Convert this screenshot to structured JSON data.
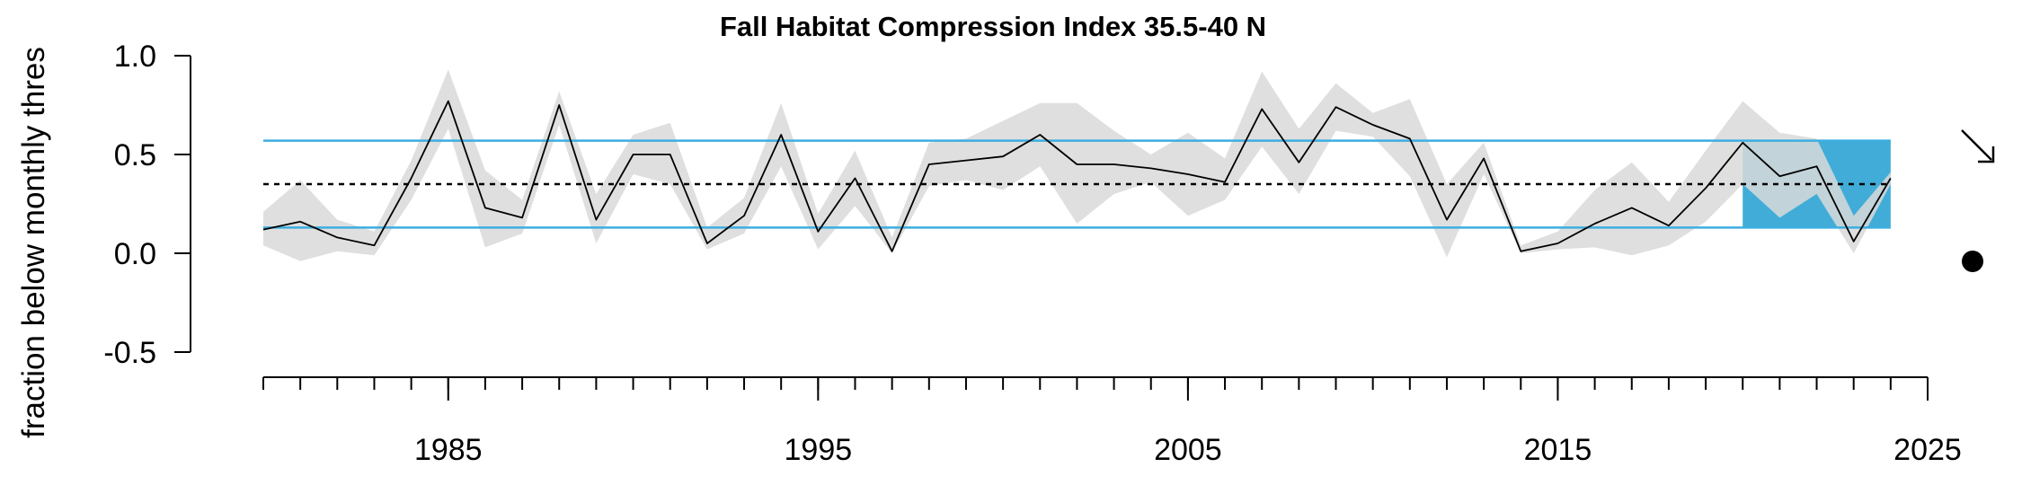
{
  "chart_data": {
    "type": "line",
    "title": "Fall Habitat Compression Index 35.5-40 N",
    "ylabel": "fraction below monthly thres",
    "xlim": [
      1980,
      2025
    ],
    "ylim": [
      -0.5,
      1.0
    ],
    "y_ticks": [
      "1.0",
      "0.5",
      "0.0",
      "-0.5"
    ],
    "y_tick_values": [
      1.0,
      0.5,
      0.0,
      -0.5
    ],
    "x_tick_labels": [
      "1985",
      "1995",
      "2005",
      "2015",
      "2025"
    ],
    "x_tick_values": [
      1985,
      1995,
      2005,
      2015,
      2025
    ],
    "x_minor_ticks": [
      1980,
      1981,
      1982,
      1983,
      1984,
      1985,
      1986,
      1987,
      1988,
      1989,
      1990,
      1991,
      1992,
      1993,
      1994,
      1995,
      1996,
      1997,
      1998,
      1999,
      2000,
      2001,
      2002,
      2003,
      2004,
      2005,
      2006,
      2007,
      2008,
      2009,
      2010,
      2011,
      2012,
      2013,
      2014,
      2015,
      2016,
      2017,
      2018,
      2019,
      2020,
      2021,
      2022,
      2023,
      2024,
      2025
    ],
    "x": [
      1980,
      1981,
      1982,
      1983,
      1984,
      1985,
      1986,
      1987,
      1988,
      1989,
      1990,
      1991,
      1992,
      1993,
      1994,
      1995,
      1996,
      1997,
      1998,
      1999,
      2000,
      2001,
      2002,
      2003,
      2004,
      2005,
      2006,
      2007,
      2008,
      2009,
      2010,
      2011,
      2012,
      2013,
      2014,
      2015,
      2016,
      2017,
      2018,
      2019,
      2020,
      2021,
      2022,
      2023,
      2024
    ],
    "values": [
      0.12,
      0.16,
      0.08,
      0.04,
      0.38,
      0.77,
      0.23,
      0.18,
      0.75,
      0.17,
      0.5,
      0.5,
      0.05,
      0.19,
      0.6,
      0.11,
      0.38,
      0.01,
      0.45,
      0.47,
      0.49,
      0.6,
      0.45,
      0.45,
      0.43,
      0.4,
      0.36,
      0.73,
      0.46,
      0.74,
      0.65,
      0.58,
      0.17,
      0.48,
      0.01,
      0.05,
      0.15,
      0.23,
      0.14,
      0.33,
      0.56,
      0.39,
      0.44,
      0.06,
      0.38
    ],
    "upper": [
      0.21,
      0.37,
      0.17,
      0.11,
      0.47,
      0.93,
      0.42,
      0.27,
      0.82,
      0.3,
      0.6,
      0.66,
      0.13,
      0.28,
      0.76,
      0.2,
      0.52,
      0.08,
      0.56,
      0.58,
      0.67,
      0.76,
      0.76,
      0.62,
      0.5,
      0.61,
      0.48,
      0.92,
      0.63,
      0.86,
      0.71,
      0.78,
      0.35,
      0.56,
      0.04,
      0.11,
      0.32,
      0.46,
      0.26,
      0.52,
      0.77,
      0.61,
      0.58,
      0.19,
      0.41
    ],
    "lower": [
      0.04,
      -0.04,
      0.01,
      -0.01,
      0.27,
      0.63,
      0.03,
      0.1,
      0.65,
      0.05,
      0.4,
      0.35,
      0.02,
      0.1,
      0.44,
      0.02,
      0.24,
      0.0,
      0.34,
      0.37,
      0.32,
      0.44,
      0.15,
      0.3,
      0.36,
      0.19,
      0.27,
      0.54,
      0.3,
      0.62,
      0.59,
      0.39,
      -0.02,
      0.4,
      0.0,
      0.02,
      0.03,
      -0.01,
      0.04,
      0.16,
      0.35,
      0.18,
      0.3,
      0.0,
      0.35
    ],
    "hlines": {
      "mean": 0.35,
      "upper_sd": 0.57,
      "lower_sd": 0.13
    },
    "highlight_range": {
      "x_start": 2020,
      "x_end": 2024,
      "y_low": 0.13,
      "y_high": 0.57
    },
    "trend_indicator": "arrow-down-right",
    "status_indicator": "filled-circle",
    "colors": {
      "line": "#000000",
      "ribbon": "#d9d9d9",
      "hline": "#3baee0",
      "highlight": "#41acd8",
      "mean_line": "#000000",
      "axis": "#000000"
    }
  }
}
